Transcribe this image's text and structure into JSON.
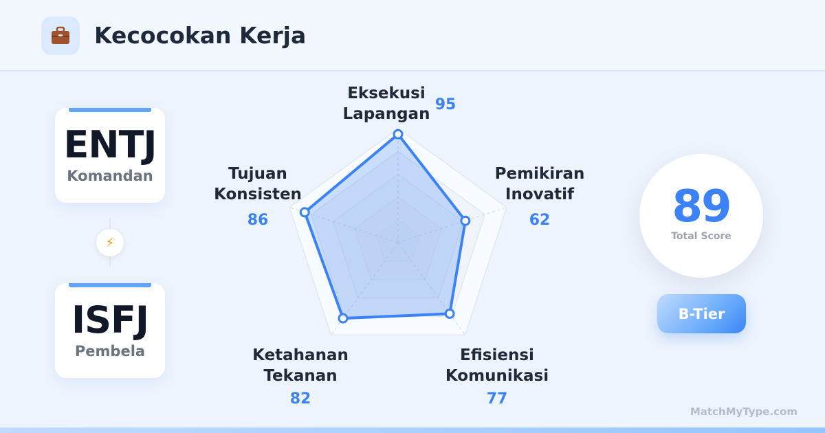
{
  "header": {
    "title": "Kecocokan Kerja",
    "icon": "briefcase-icon"
  },
  "types": [
    {
      "code": "ENTJ",
      "name": "Komandan"
    },
    {
      "code": "ISFJ",
      "name": "Pembela"
    }
  ],
  "connector_icon": "lightning-icon",
  "chart_data": {
    "type": "radar",
    "categories": [
      "Eksekusi Lapangan",
      "Pemikiran Inovatif",
      "Efisiensi Komunikasi",
      "Ketahanan Tekanan",
      "Tujuan Konsisten"
    ],
    "labels": [
      [
        "Eksekusi",
        "Lapangan"
      ],
      [
        "Pemikiran",
        "Inovatif"
      ],
      [
        "Efisiensi",
        "Komunikasi"
      ],
      [
        "Ketahanan",
        "Tekanan"
      ],
      [
        "Tujuan",
        "Konsisten"
      ]
    ],
    "values": [
      95,
      62,
      77,
      82,
      86
    ],
    "range": [
      0,
      100
    ],
    "color": "#3b82f6"
  },
  "score": {
    "value": "89",
    "label": "Total Score"
  },
  "tier": "B-Tier",
  "brand": "MatchMyType.com"
}
